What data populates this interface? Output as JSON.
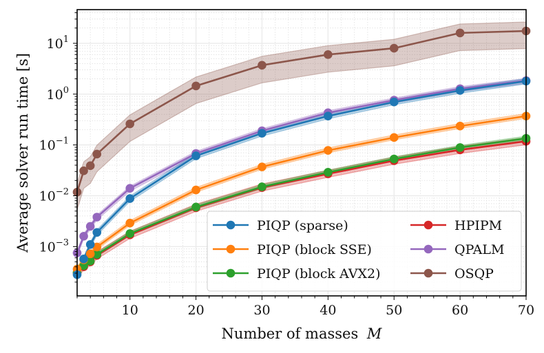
{
  "chart_data": {
    "type": "line",
    "title": "",
    "xlabel": "Number of masses",
    "xlabel_var": "M",
    "ylabel": "Average solver run time [s]",
    "xscale": "linear",
    "yscale": "log",
    "xlim": [
      2,
      70
    ],
    "ylim": [
      0.000107,
      46
    ],
    "grid": true,
    "legend_position": "lower-right",
    "legend_columns": 2,
    "x_ticks": [
      10,
      20,
      30,
      40,
      50,
      60,
      70
    ],
    "x_tick_labels": [
      "10",
      "20",
      "30",
      "40",
      "50",
      "60",
      "70"
    ],
    "y_ticks": [
      0.001,
      0.01,
      0.1,
      1,
      10
    ],
    "y_tick_labels": [
      {
        "base": "10",
        "exp": "−3"
      },
      {
        "base": "10",
        "exp": "−2"
      },
      {
        "base": "10",
        "exp": "−1"
      },
      {
        "base": "10",
        "exp": "0"
      },
      {
        "base": "10",
        "exp": "1"
      }
    ],
    "x": [
      2,
      3,
      4,
      5,
      10,
      20,
      30,
      40,
      50,
      60,
      70
    ],
    "series": [
      {
        "name": "PIQP (sparse)",
        "color": "#1f77b4",
        "values": [
          0.00028,
          0.00057,
          0.0011,
          0.0019,
          0.0088,
          0.061,
          0.17,
          0.37,
          0.7,
          1.18,
          1.8
        ],
        "band_low_factor": 0.88,
        "band_high_factor": 1.12
      },
      {
        "name": "PIQP (block SSE)",
        "color": "#ff7f0e",
        "values": [
          0.00036,
          0.00055,
          0.00072,
          0.00098,
          0.0029,
          0.013,
          0.037,
          0.078,
          0.14,
          0.235,
          0.37
        ],
        "band_low_factor": 0.9,
        "band_high_factor": 1.12
      },
      {
        "name": "PIQP (block AVX2)",
        "color": "#2ca02c",
        "values": [
          0.00031,
          0.00042,
          0.00052,
          0.0007,
          0.0018,
          0.006,
          0.015,
          0.029,
          0.053,
          0.089,
          0.135
        ],
        "band_low_factor": 0.92,
        "band_high_factor": 1.1
      },
      {
        "name": "HPIPM",
        "color": "#d62728",
        "values": [
          0.0003,
          0.0004,
          0.0005,
          0.00067,
          0.0017,
          0.0058,
          0.0145,
          0.027,
          0.049,
          0.08,
          0.118
        ],
        "band_low_factor": 0.85,
        "band_high_factor": 1.18
      },
      {
        "name": "QPALM",
        "color": "#9467bd",
        "values": [
          0.00075,
          0.0016,
          0.0025,
          0.0038,
          0.014,
          0.068,
          0.19,
          0.43,
          0.76,
          1.28,
          1.85
        ],
        "band_low_factor": 0.88,
        "band_high_factor": 1.1
      },
      {
        "name": "OSQP",
        "color": "#8c564b",
        "values": [
          0.0118,
          0.031,
          0.039,
          0.066,
          0.26,
          1.45,
          3.7,
          6.0,
          8.0,
          16.0,
          17.5
        ],
        "band_low_factor": 0.45,
        "band_high_factor": 1.5
      }
    ]
  }
}
